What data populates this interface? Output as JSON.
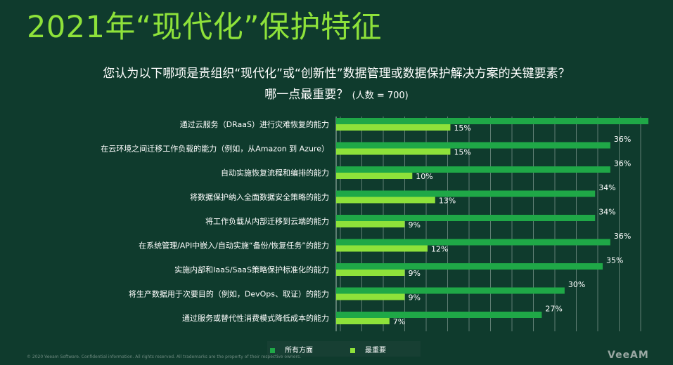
{
  "title": "2021年“现代化”保护特征",
  "question_line1": "您认为以下哪项是贵组织“现代化”或“创新性”数据管理或数据保护解决方案的关键要素？",
  "question_line2": "哪一点最重要？",
  "sample_size": "(人数 = 700)",
  "footer": "© 2020 Veeam Software. Confidential information. All rights reserved. All trademarks are the property of their respective owners.",
  "logo": "VeeAM",
  "colors": {
    "background": "#0f3b2d",
    "series_all": "#1fa847",
    "series_most": "#8ee23a",
    "title": "#8ee23a"
  },
  "chart_data": {
    "type": "bar",
    "orientation": "horizontal",
    "categories": [
      "通过云服务（DRaaS）进行灾难恢复的能力",
      "在云环境之间迁移工作负载的能力（例如，从Amazon 到 Azure）",
      "自动实施恢复流程和编排的能力",
      "将数据保护纳入全面数据安全策略的能力",
      "将工作负载从内部迁移到云端的能力",
      "在系统管理/API中嵌入/自动实施“备份/恢复任务”的能力",
      "实施内部和IaaS/SaaS策略保护标准化的能力",
      "将生产数据用于次要目的（例如，DevOps、取证）的能力",
      "通过服务或替代性消费模式降低成本的能力"
    ],
    "series": [
      {
        "name": "所有方面",
        "values": [
          41,
          36,
          36,
          34,
          34,
          36,
          35,
          30,
          27
        ],
        "labels": [
          "",
          "36%",
          "36%",
          "34%",
          "34%",
          "36%",
          "35%",
          "30%",
          "27%"
        ]
      },
      {
        "name": "最重要",
        "values": [
          15,
          15,
          10,
          13,
          9,
          12,
          9,
          9,
          7
        ],
        "labels": [
          "15%",
          "15%",
          "10%",
          "13%",
          "9%",
          "12%",
          "9%",
          "9%",
          "7%"
        ]
      }
    ],
    "xlim": [
      0,
      41
    ],
    "grid": true,
    "legend": "bottom"
  }
}
